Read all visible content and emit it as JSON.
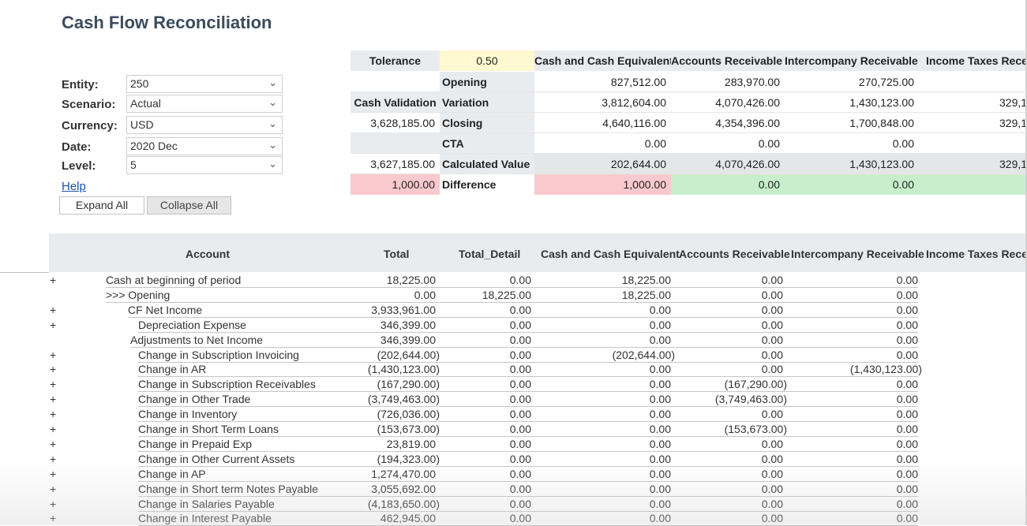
{
  "title": "Cash Flow Reconciliation",
  "filters": [
    {
      "label": "Entity:",
      "value": "250"
    },
    {
      "label": "Scenario:",
      "value": "Actual"
    },
    {
      "label": "Currency:",
      "value": "USD"
    },
    {
      "label": "Date:",
      "value": "2020 Dec"
    },
    {
      "label": "Level:",
      "value": "5"
    }
  ],
  "help_label": "Help",
  "buttons": {
    "expand_all": "Expand All",
    "collapse_all": "Collapse All"
  },
  "summary": {
    "tolerance_label": "Tolerance",
    "tolerance_value": "0.50",
    "columns": [
      "Cash and Cash Equivalent",
      "Accounts Receivable",
      "Intercompany Receivable",
      "Income Taxes Recei"
    ],
    "rows": [
      {
        "left": "",
        "label": "Opening",
        "values": [
          "827,512.00",
          "283,970.00",
          "270,725.00",
          ""
        ]
      },
      {
        "left": "Cash Validation",
        "label": "Variation",
        "values": [
          "3,812,604.00",
          "4,070,426.00",
          "1,430,123.00",
          "329,1"
        ]
      },
      {
        "left": "3,628,185.00",
        "label": "Closing",
        "values": [
          "4,640,116.00",
          "4,354,396.00",
          "1,700,848.00",
          "329,1"
        ]
      },
      {
        "left": "",
        "label": "CTA",
        "values": [
          "0.00",
          "0.00",
          "0.00",
          ""
        ]
      },
      {
        "left": "3,627,185.00",
        "label": "Calculated Value",
        "values": [
          "202,644.00",
          "4,070,426.00",
          "1,430,123.00",
          "329,1"
        ]
      },
      {
        "left": "1,000.00",
        "label": "Difference",
        "values": [
          "1,000.00",
          "0.00",
          "0.00",
          ""
        ]
      }
    ],
    "colors": {
      "header": "#e9ecef",
      "tolerance": "#fff8d0",
      "mismatch": "#f9c9cd",
      "match": "#c8efcc"
    }
  },
  "table": {
    "columns": [
      "Account",
      "Total",
      "Total_Detail",
      "Cash and Cash Equivalent",
      "Accounts Receivable",
      "Intercompany Receivable",
      "Income Taxes Recei"
    ],
    "rows": [
      {
        "expand": "+",
        "account": "Cash at beginning of period",
        "level": 0,
        "values": [
          "18,225.00",
          "0.00",
          "18,225.00",
          "0.00",
          "0.00"
        ]
      },
      {
        "expand": "",
        "account": ">>> Opening",
        "level": 0,
        "values": [
          "0.00",
          "18,225.00",
          "18,225.00",
          "0.00",
          "0.00"
        ]
      },
      {
        "expand": "+",
        "account": "CF Net Income",
        "level": 1,
        "values": [
          "3,933,961.00",
          "0.00",
          "0.00",
          "0.00",
          "0.00"
        ]
      },
      {
        "expand": "+",
        "account": "Depreciation Expense",
        "level": 2,
        "values": [
          "346,399.00",
          "0.00",
          "0.00",
          "0.00",
          "0.00"
        ]
      },
      {
        "expand": "",
        "account": "Adjustments to Net Income",
        "level": 3,
        "values": [
          "346,399.00",
          "0.00",
          "0.00",
          "0.00",
          "0.00"
        ]
      },
      {
        "expand": "+",
        "account": "Change in Subscription Invoicing",
        "level": 2,
        "values": [
          "(202,644.00)",
          "0.00",
          "(202,644.00)",
          "0.00",
          "0.00"
        ]
      },
      {
        "expand": "+",
        "account": "Change in AR",
        "level": 2,
        "values": [
          "(1,430,123.00)",
          "0.00",
          "0.00",
          "0.00",
          "(1,430,123.00)"
        ]
      },
      {
        "expand": "+",
        "account": "Change in Subscription Receivables",
        "level": 2,
        "values": [
          "(167,290.00)",
          "0.00",
          "0.00",
          "(167,290.00)",
          "0.00"
        ]
      },
      {
        "expand": "+",
        "account": "Change in Other Trade",
        "level": 2,
        "values": [
          "(3,749,463.00)",
          "0.00",
          "0.00",
          "(3,749,463.00)",
          "0.00"
        ]
      },
      {
        "expand": "+",
        "account": "Change in Inventory",
        "level": 2,
        "values": [
          "(726,036.00)",
          "0.00",
          "0.00",
          "0.00",
          "0.00"
        ]
      },
      {
        "expand": "+",
        "account": "Change in Short Term Loans",
        "level": 2,
        "values": [
          "(153,673.00)",
          "0.00",
          "0.00",
          "(153,673.00)",
          "0.00"
        ]
      },
      {
        "expand": "+",
        "account": "Change in Prepaid Exp",
        "level": 2,
        "values": [
          "23,819.00",
          "0.00",
          "0.00",
          "0.00",
          "0.00"
        ]
      },
      {
        "expand": "+",
        "account": "Change in Other Current Assets",
        "level": 2,
        "values": [
          "(194,323.00)",
          "0.00",
          "0.00",
          "0.00",
          "0.00"
        ]
      },
      {
        "expand": "+",
        "account": "Change in AP",
        "level": 2,
        "values": [
          "1,274,470.00",
          "0.00",
          "0.00",
          "0.00",
          "0.00"
        ]
      },
      {
        "expand": "+",
        "account": "Change in Short term Notes Payable",
        "level": 2,
        "values": [
          "3,055,692.00",
          "0.00",
          "0.00",
          "0.00",
          "0.00"
        ]
      },
      {
        "expand": "+",
        "account": "Change in Salaries Payable",
        "level": 2,
        "values": [
          "(4,183,650.00)",
          "0.00",
          "0.00",
          "0.00",
          "0.00"
        ]
      },
      {
        "expand": "+",
        "account": "Change in Interest Payable",
        "level": 2,
        "values": [
          "462,945.00",
          "0.00",
          "0.00",
          "0.00",
          "0.00"
        ]
      }
    ]
  }
}
